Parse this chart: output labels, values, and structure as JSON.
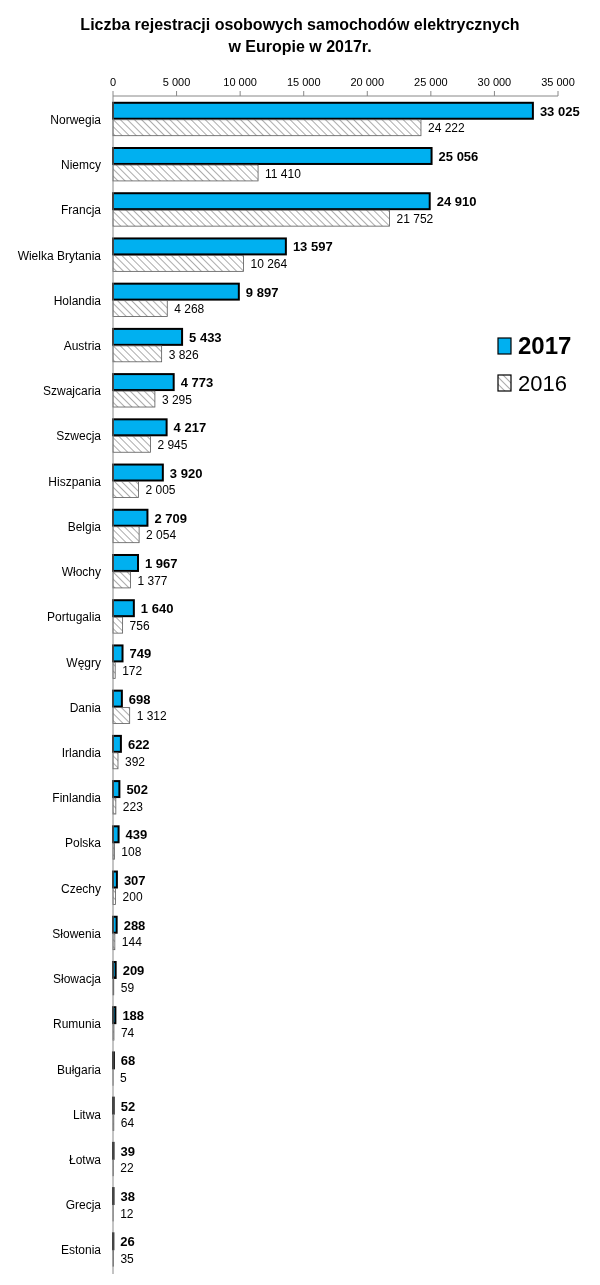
{
  "chart_data": {
    "type": "bar",
    "orientation": "horizontal",
    "title": "Liczba rejestracji osobowych samochodów elektrycznych\nw Europie w 2017r.",
    "categories": [
      "Norwegia",
      "Niemcy",
      "Francja",
      "Wielka Brytania",
      "Holandia",
      "Austria",
      "Szwajcaria",
      "Szwecja",
      "Hiszpania",
      "Belgia",
      "Włochy",
      "Portugalia",
      "Węgry",
      "Dania",
      "Irlandia",
      "Finlandia",
      "Polska",
      "Czechy",
      "Słowenia",
      "Słowacja",
      "Rumunia",
      "Bułgaria",
      "Litwa",
      "Łotwa",
      "Grecja",
      "Estonia"
    ],
    "series": [
      {
        "name": "2017",
        "color": "#00b0f0",
        "values": [
          33025,
          25056,
          24910,
          13597,
          9897,
          5433,
          4773,
          4217,
          3920,
          2709,
          1967,
          1640,
          749,
          698,
          622,
          502,
          439,
          307,
          288,
          209,
          188,
          68,
          52,
          39,
          38,
          26
        ],
        "value_labels": [
          "33 025",
          "25 056",
          "24 910",
          "13 597",
          "9 897",
          "5 433",
          "4 773",
          "4 217",
          "3 920",
          "2 709",
          "1 967",
          "1 640",
          "749",
          "698",
          "622",
          "502",
          "439",
          "307",
          "288",
          "209",
          "188",
          "68",
          "52",
          "39",
          "38",
          "26"
        ]
      },
      {
        "name": "2016",
        "color": "#595959",
        "values": [
          24222,
          11410,
          21752,
          10264,
          4268,
          3826,
          3295,
          2945,
          2005,
          2054,
          1377,
          756,
          172,
          1312,
          392,
          223,
          108,
          200,
          144,
          59,
          74,
          5,
          64,
          22,
          12,
          35
        ],
        "value_labels": [
          "24 222",
          "11 410",
          "21 752",
          "10 264",
          "4 268",
          "3 826",
          "3 295",
          "2 945",
          "2 005",
          "2 054",
          "1 377",
          "756",
          "172",
          "1 312",
          "392",
          "223",
          "108",
          "200",
          "144",
          "59",
          "74",
          "5",
          "64",
          "22",
          "12",
          "35"
        ]
      }
    ],
    "xlim": [
      0,
      35000
    ],
    "xticks": [
      0,
      {
        "value": 5000,
        "label": "5 000"
      },
      {
        "value": 10000,
        "label": "10 000"
      },
      {
        "value": 15000,
        "label": "15 000"
      },
      {
        "value": 20000,
        "label": "20 000"
      },
      {
        "value": 25000,
        "label": "25 000"
      },
      {
        "value": 30000,
        "label": "30 000"
      },
      {
        "value": 35000,
        "label": "35 000"
      }
    ],
    "grid": false,
    "legend": "right"
  }
}
